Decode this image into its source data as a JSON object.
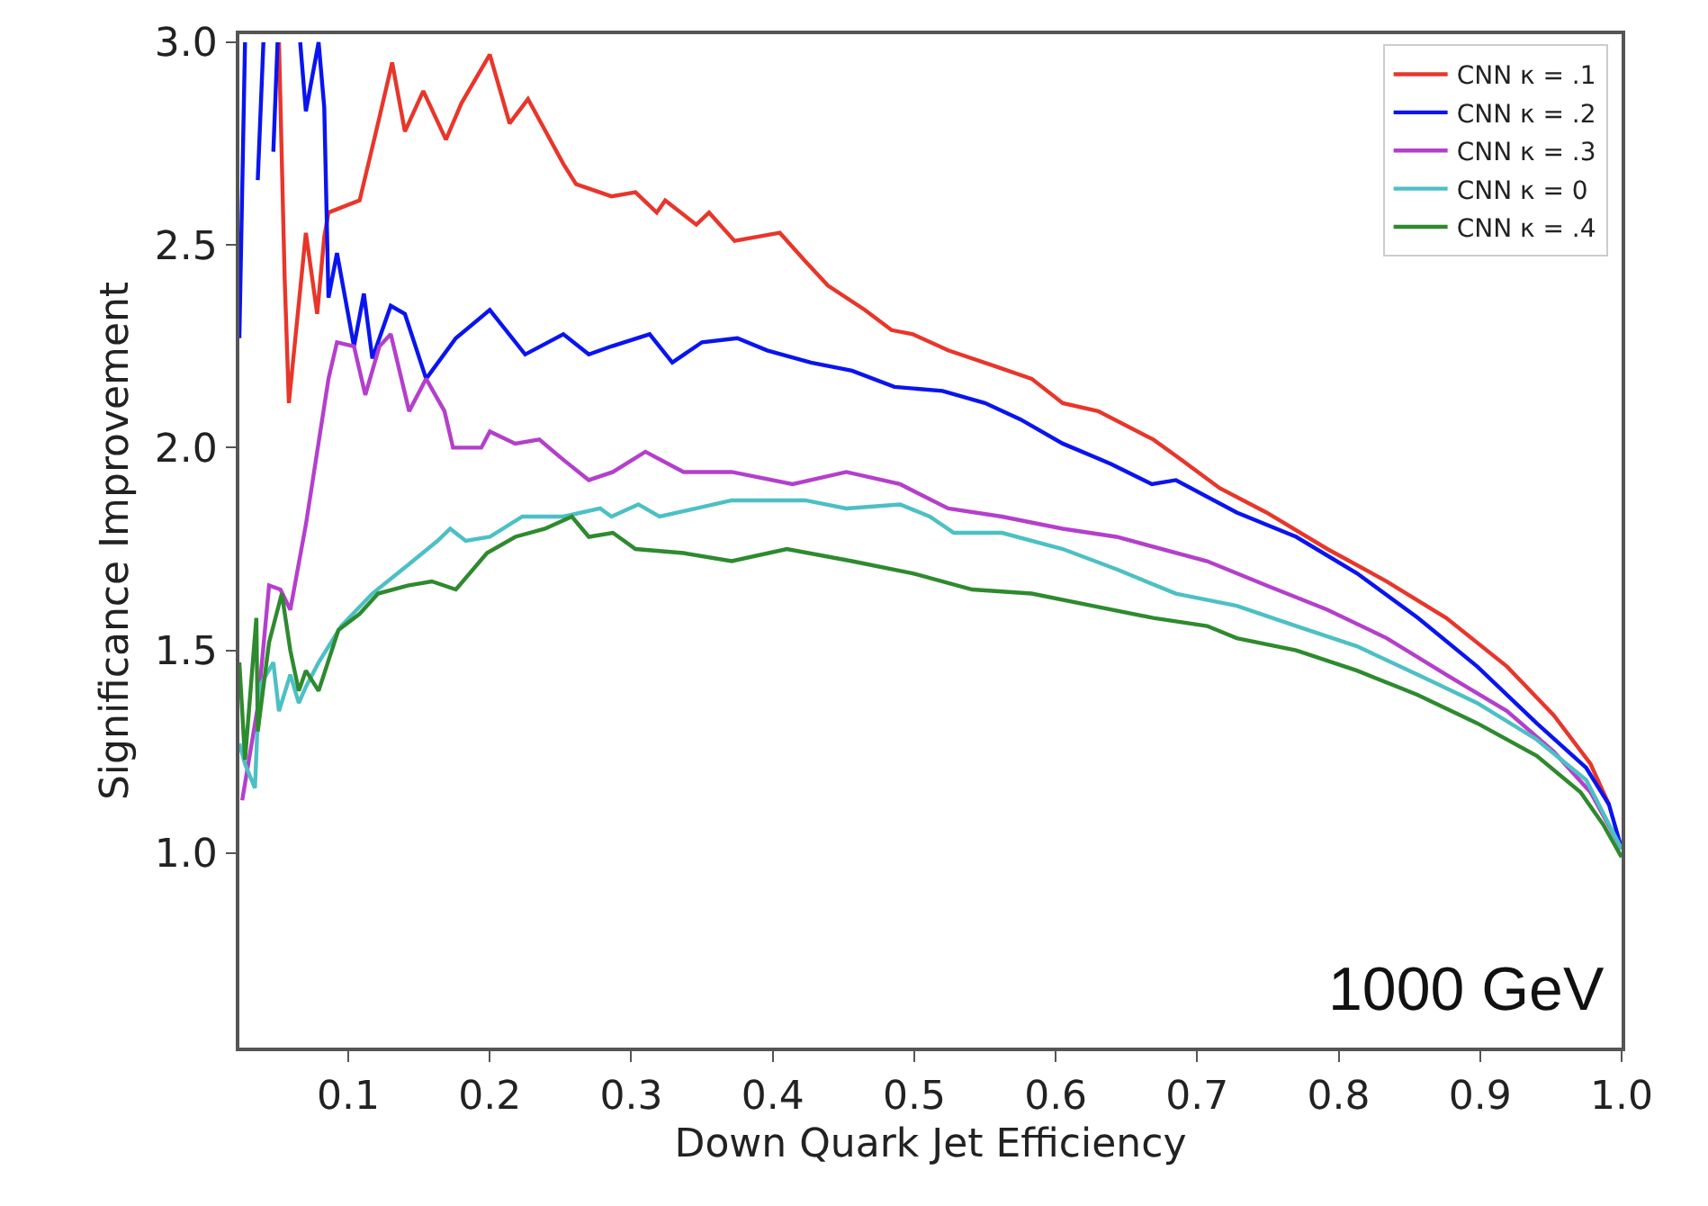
{
  "chart_data": {
    "type": "line",
    "xlabel": "Down Quark Jet Efficiency",
    "ylabel": "Significance Improvement",
    "annotations": [
      "1000 GeV"
    ],
    "xlim": [
      0.023,
      1.0
    ],
    "ylim": [
      0.52,
      3.02
    ],
    "xticks": [
      {
        "value": 0.1,
        "label": "0.1"
      },
      {
        "value": 0.2,
        "label": "0.2"
      },
      {
        "value": 0.3,
        "label": "0.3"
      },
      {
        "value": 0.4,
        "label": "0.4"
      },
      {
        "value": 0.5,
        "label": "0.5"
      },
      {
        "value": 0.6,
        "label": "0.6"
      },
      {
        "value": 0.7,
        "label": "0.7"
      },
      {
        "value": 0.8,
        "label": "0.8"
      },
      {
        "value": 0.9,
        "label": "0.9"
      },
      {
        "value": 1.0,
        "label": "1.0"
      }
    ],
    "yticks": [
      {
        "value": 1.0,
        "label": "1.0"
      },
      {
        "value": 1.5,
        "label": "1.5"
      },
      {
        "value": 2.0,
        "label": "2.0"
      },
      {
        "value": 2.5,
        "label": "2.5"
      },
      {
        "value": 3.0,
        "label": "3.0"
      }
    ],
    "grid": false,
    "legend": "top right",
    "marker": "none",
    "line_style": "solid",
    "series": [
      {
        "name": "CNN κ = .1",
        "color": "#e8362b",
        "x": [
          0.051,
          0.055,
          0.058,
          0.07,
          0.078,
          0.083,
          0.086,
          0.108,
          0.121,
          0.131,
          0.14,
          0.153,
          0.169,
          0.18,
          0.2,
          0.214,
          0.227,
          0.252,
          0.261,
          0.286,
          0.303,
          0.318,
          0.324,
          0.346,
          0.355,
          0.373,
          0.405,
          0.423,
          0.439,
          0.465,
          0.484,
          0.499,
          0.524,
          0.558,
          0.583,
          0.605,
          0.63,
          0.669,
          0.685,
          0.716,
          0.749,
          0.792,
          0.834,
          0.876,
          0.919,
          0.952,
          0.978,
          0.991
        ],
        "values": [
          3.0,
          2.42,
          2.11,
          2.53,
          2.33,
          2.52,
          2.58,
          2.61,
          2.8,
          2.95,
          2.78,
          2.88,
          2.76,
          2.85,
          2.97,
          2.8,
          2.86,
          2.7,
          2.65,
          2.62,
          2.63,
          2.58,
          2.61,
          2.55,
          2.58,
          2.51,
          2.53,
          2.46,
          2.4,
          2.34,
          2.29,
          2.28,
          2.24,
          2.2,
          2.17,
          2.11,
          2.09,
          2.02,
          1.98,
          1.9,
          1.84,
          1.75,
          1.67,
          1.58,
          1.46,
          1.34,
          1.22,
          1.12
        ]
      },
      {
        "name": "CNN κ = .2",
        "color": "#0a14f0",
        "x": [
          0.023,
          0.027,
          0.031,
          0.036,
          0.04,
          0.043,
          0.047,
          0.05,
          0.06,
          0.066,
          0.07,
          0.079,
          0.083,
          0.086,
          0.092,
          0.104,
          0.111,
          0.117,
          0.13,
          0.14,
          0.155,
          0.176,
          0.2,
          0.225,
          0.252,
          0.27,
          0.286,
          0.313,
          0.329,
          0.35,
          0.375,
          0.396,
          0.427,
          0.456,
          0.486,
          0.52,
          0.55,
          0.575,
          0.605,
          0.639,
          0.668,
          0.685,
          0.728,
          0.77,
          0.813,
          0.856,
          0.898,
          0.94,
          0.975,
          0.991,
          1.0
        ],
        "values": [
          2.27,
          3.0,
          null,
          2.66,
          3.0,
          null,
          2.73,
          3.0,
          null,
          3.0,
          2.83,
          3.0,
          2.84,
          2.37,
          2.48,
          2.25,
          2.38,
          2.22,
          2.35,
          2.33,
          2.17,
          2.27,
          2.34,
          2.23,
          2.28,
          2.23,
          2.25,
          2.28,
          2.21,
          2.26,
          2.27,
          2.24,
          2.21,
          2.19,
          2.15,
          2.14,
          2.11,
          2.07,
          2.01,
          1.96,
          1.91,
          1.92,
          1.84,
          1.78,
          1.69,
          1.58,
          1.46,
          1.32,
          1.21,
          1.12,
          1.01
        ]
      },
      {
        "name": "CNN κ = .3",
        "color": "#b43fcc",
        "x": [
          0.025,
          0.036,
          0.044,
          0.052,
          0.059,
          0.07,
          0.086,
          0.092,
          0.104,
          0.112,
          0.122,
          0.13,
          0.143,
          0.155,
          0.168,
          0.174,
          0.194,
          0.2,
          0.218,
          0.235,
          0.252,
          0.27,
          0.287,
          0.31,
          0.337,
          0.371,
          0.414,
          0.452,
          0.49,
          0.524,
          0.562,
          0.605,
          0.643,
          0.707,
          0.749,
          0.792,
          0.834,
          0.876,
          0.919,
          0.952,
          0.978,
          1.0
        ],
        "values": [
          1.13,
          1.36,
          1.66,
          1.65,
          1.6,
          1.81,
          2.17,
          2.26,
          2.25,
          2.13,
          2.25,
          2.28,
          2.09,
          2.17,
          2.09,
          2.0,
          2.0,
          2.04,
          2.01,
          2.02,
          1.97,
          1.92,
          1.94,
          1.99,
          1.94,
          1.94,
          1.91,
          1.94,
          1.91,
          1.85,
          1.83,
          1.8,
          1.78,
          1.72,
          1.66,
          1.6,
          1.53,
          1.44,
          1.35,
          1.25,
          1.15,
          1.01
        ]
      },
      {
        "name": "CNN κ = 0",
        "color": "#4cc0c4",
        "x": [
          0.023,
          0.027,
          0.034,
          0.037,
          0.047,
          0.051,
          0.059,
          0.065,
          0.07,
          0.079,
          0.095,
          0.117,
          0.142,
          0.163,
          0.172,
          0.183,
          0.2,
          0.223,
          0.252,
          0.278,
          0.286,
          0.305,
          0.32,
          0.371,
          0.423,
          0.452,
          0.49,
          0.511,
          0.528,
          0.562,
          0.605,
          0.643,
          0.685,
          0.728,
          0.77,
          0.813,
          0.856,
          0.898,
          0.94,
          0.975,
          1.0
        ],
        "values": [
          1.27,
          1.22,
          1.16,
          1.41,
          1.47,
          1.35,
          1.44,
          1.37,
          1.41,
          1.47,
          1.56,
          1.64,
          1.71,
          1.77,
          1.8,
          1.77,
          1.78,
          1.83,
          1.83,
          1.85,
          1.83,
          1.86,
          1.83,
          1.87,
          1.87,
          1.85,
          1.86,
          1.83,
          1.79,
          1.79,
          1.75,
          1.7,
          1.64,
          1.61,
          1.56,
          1.51,
          1.44,
          1.37,
          1.28,
          1.18,
          1.01
        ]
      },
      {
        "name": "CNN κ = .4",
        "color": "#2e8a2e",
        "x": [
          0.023,
          0.027,
          0.035,
          0.036,
          0.044,
          0.053,
          0.059,
          0.065,
          0.07,
          0.079,
          0.093,
          0.108,
          0.121,
          0.142,
          0.159,
          0.176,
          0.198,
          0.218,
          0.239,
          0.258,
          0.27,
          0.287,
          0.303,
          0.337,
          0.371,
          0.41,
          0.456,
          0.499,
          0.541,
          0.583,
          0.626,
          0.669,
          0.707,
          0.728,
          0.77,
          0.813,
          0.856,
          0.898,
          0.94,
          0.971,
          0.987,
          1.0
        ],
        "values": [
          1.47,
          1.23,
          1.58,
          1.3,
          1.52,
          1.64,
          1.5,
          1.4,
          1.45,
          1.4,
          1.55,
          1.59,
          1.64,
          1.66,
          1.67,
          1.65,
          1.74,
          1.78,
          1.8,
          1.83,
          1.78,
          1.79,
          1.75,
          1.74,
          1.72,
          1.75,
          1.72,
          1.69,
          1.65,
          1.64,
          1.61,
          1.58,
          1.56,
          1.53,
          1.5,
          1.45,
          1.39,
          1.32,
          1.24,
          1.15,
          1.07,
          0.99
        ]
      }
    ]
  }
}
